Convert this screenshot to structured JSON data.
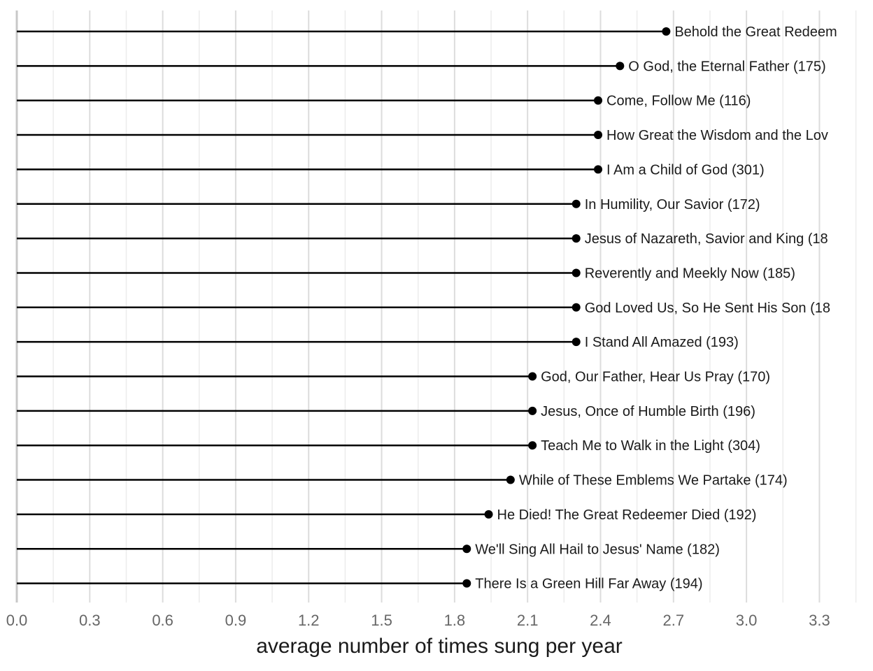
{
  "chart_data": {
    "type": "lollipop",
    "orientation": "horizontal",
    "xlabel": "average number of times sung per year",
    "ylabel": "",
    "title": "",
    "xlim": [
      0,
      3.45
    ],
    "x_ticks": [
      "0.0",
      "0.3",
      "0.6",
      "0.9",
      "1.2",
      "1.5",
      "1.8",
      "2.1",
      "2.4",
      "2.7",
      "3.0",
      "3.3"
    ],
    "minor_gridlines": true,
    "grid": "vertical",
    "items": [
      {
        "label": "Behold the Great Redeem",
        "value": 2.67
      },
      {
        "label": "O God, the Eternal Father (175)",
        "value": 2.48
      },
      {
        "label": "Come, Follow Me (116)",
        "value": 2.39
      },
      {
        "label": "How Great the Wisdom and the Lov",
        "value": 2.39
      },
      {
        "label": "I Am a Child of God (301)",
        "value": 2.39
      },
      {
        "label": "In Humility, Our Savior (172)",
        "value": 2.3
      },
      {
        "label": "Jesus of Nazareth, Savior and King (18",
        "value": 2.3
      },
      {
        "label": "Reverently and Meekly Now (185)",
        "value": 2.3
      },
      {
        "label": "God Loved Us, So He Sent His Son (18",
        "value": 2.3
      },
      {
        "label": "I Stand All Amazed (193)",
        "value": 2.3
      },
      {
        "label": "God, Our Father, Hear Us Pray (170)",
        "value": 2.12
      },
      {
        "label": "Jesus, Once of Humble Birth (196)",
        "value": 2.12
      },
      {
        "label": "Teach Me to Walk in the Light (304)",
        "value": 2.12
      },
      {
        "label": "While of These Emblems We Partake (174)",
        "value": 2.03
      },
      {
        "label": "He Died! The Great Redeemer Died (192)",
        "value": 1.94
      },
      {
        "label": "We'll Sing All Hail to Jesus' Name (182)",
        "value": 1.85
      },
      {
        "label": "There Is a Green Hill Far Away (194)",
        "value": 1.85
      }
    ]
  },
  "colors": {
    "stem": "#000000",
    "point": "#000000",
    "grid_major": "#dcdcdc",
    "grid_minor": "#ececec",
    "baseline": "#c8c8c8",
    "tick_text": "#666666",
    "label_text": "#1a1a1a"
  }
}
